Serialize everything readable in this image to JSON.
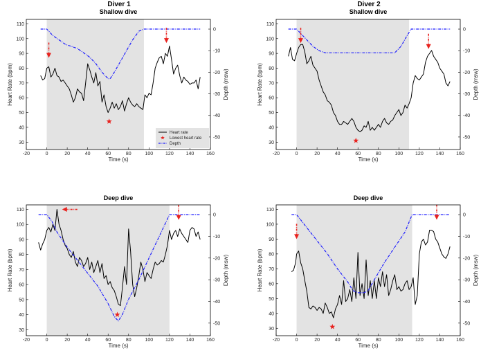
{
  "figure": {
    "diver_titles": [
      "Diver 1",
      "Diver 2"
    ],
    "colors": {
      "heart_rate": "#000000",
      "depth": "#1a1aff",
      "marker": "#e8231f",
      "shade": "#e3e3e3"
    }
  },
  "chart_data": [
    {
      "id": "d1-shallow",
      "type": "line",
      "title": "Shallow dive",
      "xlabel": "Time (s)",
      "ylabel": "Heart Rate (bpm)",
      "y2label": "Depth (msw)",
      "xlim": [
        -20,
        160
      ],
      "xticks": [
        -20,
        0,
        20,
        40,
        60,
        80,
        100,
        120,
        140,
        160
      ],
      "ylim": [
        25,
        113
      ],
      "yticks": [
        30,
        40,
        50,
        60,
        70,
        80,
        90,
        100,
        110
      ],
      "y2lim": [
        -55.8,
        4.5
      ],
      "y2ticks": [
        0,
        -10,
        -20,
        -30,
        -40,
        -50
      ],
      "shade": [
        0,
        95
      ],
      "legend": [
        "Heart rate",
        "Lowest heart rate",
        "Depth"
      ],
      "series": [
        {
          "name": "Heart rate",
          "axis": "left",
          "x": [
            -6,
            -4,
            -2,
            0,
            2,
            4,
            6,
            8,
            10,
            12,
            14,
            16,
            18,
            20,
            22,
            24,
            26,
            28,
            30,
            32,
            34,
            36,
            38,
            40,
            42,
            44,
            46,
            48,
            50,
            52,
            54,
            56,
            58,
            60,
            62,
            64,
            66,
            68,
            70,
            72,
            74,
            76,
            78,
            80,
            82,
            84,
            86,
            88,
            90,
            92,
            94,
            96,
            98,
            100,
            102,
            104,
            106,
            108,
            110,
            112,
            114,
            116,
            118,
            120,
            122,
            124,
            126,
            128,
            130,
            132,
            134,
            136,
            138,
            140,
            142,
            144,
            146,
            148,
            150
          ],
          "values": [
            75,
            72,
            73,
            80,
            81,
            74,
            76,
            80,
            75,
            74,
            71,
            72,
            70,
            68,
            66,
            62,
            57,
            60,
            66,
            64,
            63,
            58,
            70,
            83,
            79,
            74,
            70,
            77,
            68,
            71,
            57,
            62,
            54,
            50,
            53,
            57,
            53,
            56,
            52,
            54,
            58,
            51,
            56,
            60,
            57,
            55,
            54,
            56,
            54,
            53,
            52,
            62,
            60,
            63,
            62,
            70,
            80,
            84,
            87,
            88,
            83,
            90,
            88,
            95,
            86,
            76,
            80,
            82,
            75,
            70,
            74,
            72,
            71,
            69,
            70,
            70,
            72,
            66,
            74
          ]
        },
        {
          "name": "Depth",
          "axis": "right",
          "x": [
            -6,
            0,
            6,
            12,
            18,
            24,
            30,
            36,
            42,
            48,
            54,
            60,
            62,
            66,
            72,
            78,
            84,
            90,
            95,
            100,
            110,
            120,
            130,
            140,
            150
          ],
          "values": [
            0,
            0,
            -3,
            -5,
            -7,
            -8,
            -9,
            -11,
            -13,
            -16,
            -20,
            -23,
            -23,
            -20,
            -15,
            -10,
            -5,
            -1,
            0,
            0,
            0,
            0,
            0,
            0,
            0
          ]
        }
      ],
      "markers": [
        {
          "kind": "star",
          "x": 61,
          "y": 44
        },
        {
          "kind": "arrow-down",
          "x": 2,
          "y": 87
        },
        {
          "kind": "arrow-down",
          "x": 117,
          "y": 97
        }
      ]
    },
    {
      "id": "d2-shallow",
      "type": "line",
      "title": "Shallow dive",
      "xlabel": "Time (s)",
      "ylabel": "Heart Rate (bpm)",
      "y2label": "Depth (msw)",
      "xlim": [
        -20,
        160
      ],
      "xticks": [
        -20,
        0,
        20,
        40,
        60,
        80,
        100,
        120,
        140,
        160
      ],
      "ylim": [
        25,
        113
      ],
      "yticks": [
        30,
        40,
        50,
        60,
        70,
        80,
        90,
        100,
        110
      ],
      "y2lim": [
        -55.8,
        4.5
      ],
      "y2ticks": [
        0,
        -10,
        -20,
        -30,
        -40,
        -50
      ],
      "shade": [
        0,
        110
      ],
      "series": [
        {
          "name": "Heart rate",
          "axis": "left",
          "x": [
            -8,
            -6,
            -4,
            -2,
            0,
            2,
            4,
            6,
            8,
            10,
            12,
            14,
            16,
            18,
            20,
            22,
            24,
            26,
            28,
            30,
            32,
            34,
            36,
            38,
            40,
            42,
            44,
            46,
            48,
            50,
            52,
            54,
            56,
            58,
            60,
            62,
            64,
            66,
            68,
            70,
            72,
            74,
            76,
            78,
            80,
            82,
            84,
            86,
            88,
            90,
            92,
            94,
            96,
            98,
            100,
            102,
            104,
            106,
            108,
            110,
            112,
            114,
            116,
            118,
            120,
            122,
            124,
            126,
            128,
            130,
            132,
            134,
            136,
            138,
            140,
            142,
            144,
            146,
            148,
            150
          ],
          "values": [
            88,
            94,
            86,
            85,
            90,
            94,
            96,
            96,
            91,
            83,
            85,
            88,
            82,
            80,
            78,
            72,
            68,
            64,
            62,
            58,
            57,
            55,
            50,
            48,
            44,
            42,
            42,
            44,
            43,
            42,
            44,
            46,
            44,
            40,
            38,
            37,
            38,
            41,
            40,
            44,
            38,
            40,
            38,
            40,
            42,
            40,
            44,
            46,
            43,
            42,
            44,
            45,
            48,
            50,
            52,
            48,
            50,
            55,
            53,
            56,
            60,
            70,
            75,
            73,
            72,
            74,
            76,
            84,
            88,
            90,
            92,
            88,
            86,
            84,
            80,
            78,
            76,
            70,
            68,
            71
          ]
        },
        {
          "name": "Depth",
          "axis": "right",
          "x": [
            -8,
            0,
            4,
            10,
            16,
            22,
            28,
            40,
            60,
            80,
            96,
            102,
            108,
            112,
            120,
            130,
            140,
            150
          ],
          "values": [
            0,
            0,
            -2,
            -5,
            -8,
            -10,
            -11,
            -11,
            -11,
            -11,
            -11,
            -8,
            -3,
            0,
            0,
            0,
            0,
            0
          ]
        }
      ],
      "markers": [
        {
          "kind": "star",
          "x": 58,
          "y": 31
        },
        {
          "kind": "arrow-down",
          "x": 4,
          "y": 97
        },
        {
          "kind": "arrow-down",
          "x": 129,
          "y": 93
        }
      ]
    },
    {
      "id": "d1-deep",
      "type": "line",
      "title": "Deep dive",
      "xlabel": "Time (s)",
      "ylabel": "Heart Rate (bpm)",
      "y2label": "Depth (msw)",
      "xlim": [
        -20,
        160
      ],
      "xticks": [
        -20,
        0,
        20,
        40,
        60,
        80,
        100,
        120,
        140,
        160
      ],
      "ylim": [
        26,
        113
      ],
      "yticks": [
        30,
        40,
        50,
        60,
        70,
        80,
        90,
        100,
        110
      ],
      "y2lim": [
        -55.8,
        4.5
      ],
      "y2ticks": [
        0,
        -10,
        -20,
        -30,
        -40,
        -50
      ],
      "shade": [
        0,
        120
      ],
      "series": [
        {
          "name": "Heart rate",
          "axis": "left",
          "x": [
            -8,
            -6,
            -4,
            -2,
            0,
            2,
            4,
            6,
            8,
            10,
            12,
            14,
            16,
            18,
            20,
            22,
            24,
            26,
            28,
            30,
            32,
            34,
            36,
            38,
            40,
            42,
            44,
            46,
            48,
            50,
            52,
            54,
            56,
            58,
            60,
            62,
            64,
            66,
            68,
            70,
            72,
            74,
            76,
            78,
            80,
            82,
            84,
            86,
            88,
            90,
            92,
            94,
            96,
            98,
            100,
            102,
            104,
            106,
            108,
            110,
            112,
            114,
            116,
            118,
            120,
            122,
            124,
            126,
            128,
            130,
            132,
            134,
            136,
            138,
            140,
            142,
            144,
            146,
            148,
            150
          ],
          "values": [
            88,
            83,
            87,
            90,
            96,
            98,
            95,
            100,
            96,
            110,
            100,
            96,
            90,
            86,
            84,
            80,
            78,
            82,
            75,
            72,
            78,
            76,
            72,
            74,
            78,
            70,
            75,
            68,
            72,
            76,
            68,
            74,
            64,
            66,
            60,
            62,
            58,
            56,
            52,
            47,
            46,
            58,
            72,
            60,
            97,
            82,
            60,
            52,
            58,
            66,
            75,
            70,
            62,
            68,
            66,
            64,
            70,
            75,
            73,
            74,
            76,
            75,
            80,
            86,
            96,
            90,
            94,
            96,
            92,
            97,
            94,
            92,
            90,
            88,
            96,
            98,
            97,
            92,
            95,
            90
          ]
        },
        {
          "name": "Depth",
          "axis": "right",
          "x": [
            -8,
            0,
            5,
            10,
            20,
            30,
            40,
            50,
            60,
            66,
            70,
            74,
            80,
            90,
            100,
            110,
            120,
            130,
            140,
            150
          ],
          "values": [
            0,
            0,
            -3,
            -8,
            -15,
            -21,
            -27,
            -33,
            -41,
            -47,
            -49,
            -46,
            -39,
            -30,
            -20,
            -10,
            0,
            0,
            0,
            0
          ]
        }
      ],
      "markers": [
        {
          "kind": "star",
          "x": 69,
          "y": 40
        },
        {
          "kind": "arrow-left",
          "x": 15,
          "y": 110
        },
        {
          "kind": "arrow-down",
          "x": 129,
          "y": 103
        }
      ]
    },
    {
      "id": "d2-deep",
      "type": "line",
      "title": "Deep dive",
      "xlabel": "Time (s)",
      "ylabel": "Heart Rate (bpm)",
      "y2label": "Depth (msw)",
      "xlim": [
        -20,
        160
      ],
      "xticks": [
        -20,
        0,
        20,
        40,
        60,
        80,
        100,
        120,
        140,
        160
      ],
      "ylim": [
        25,
        113
      ],
      "yticks": [
        30,
        40,
        50,
        60,
        70,
        80,
        90,
        100,
        110
      ],
      "y2lim": [
        -55.8,
        4.5
      ],
      "y2ticks": [
        0,
        -10,
        -20,
        -30,
        -40,
        -50
      ],
      "shade": [
        0,
        113
      ],
      "series": [
        {
          "name": "Heart rate",
          "axis": "left",
          "x": [
            -5,
            -3,
            -1,
            0,
            2,
            4,
            6,
            8,
            10,
            12,
            14,
            16,
            18,
            20,
            22,
            24,
            26,
            28,
            30,
            32,
            34,
            36,
            38,
            40,
            42,
            44,
            46,
            48,
            50,
            52,
            54,
            56,
            58,
            60,
            62,
            64,
            66,
            68,
            70,
            72,
            74,
            76,
            78,
            80,
            82,
            84,
            86,
            88,
            90,
            92,
            94,
            96,
            98,
            100,
            102,
            104,
            106,
            108,
            110,
            112,
            114,
            116,
            118,
            120,
            122,
            124,
            126,
            128,
            130,
            132,
            134,
            136,
            138,
            140,
            142,
            144,
            146,
            148,
            150
          ],
          "values": [
            68,
            69,
            74,
            80,
            82,
            74,
            70,
            62,
            55,
            44,
            43,
            45,
            44,
            42,
            44,
            43,
            40,
            47,
            44,
            40,
            41,
            37,
            43,
            46,
            52,
            46,
            62,
            48,
            50,
            56,
            48,
            64,
            50,
            81,
            52,
            60,
            50,
            76,
            52,
            62,
            50,
            62,
            50,
            64,
            58,
            68,
            58,
            66,
            52,
            56,
            62,
            66,
            56,
            58,
            55,
            56,
            60,
            62,
            56,
            58,
            64,
            46,
            52,
            80,
            88,
            90,
            86,
            88,
            96,
            96,
            95,
            90,
            88,
            84,
            80,
            78,
            77,
            80,
            85
          ]
        },
        {
          "name": "Depth",
          "axis": "right",
          "x": [
            -5,
            0,
            10,
            20,
            30,
            40,
            50,
            55,
            60,
            66,
            70,
            76,
            86,
            96,
            106,
            113,
            120,
            130,
            140,
            150
          ],
          "values": [
            0,
            0,
            -6,
            -12,
            -18,
            -25,
            -31,
            -35,
            -36,
            -36,
            -35,
            -30,
            -22,
            -15,
            -8,
            0,
            0,
            0,
            0,
            0
          ]
        }
      ],
      "markers": [
        {
          "kind": "star",
          "x": 35,
          "y": 31
        },
        {
          "kind": "arrow-down",
          "x": 0,
          "y": 90
        },
        {
          "kind": "arrow-down",
          "x": 137,
          "y": 103
        }
      ]
    }
  ]
}
